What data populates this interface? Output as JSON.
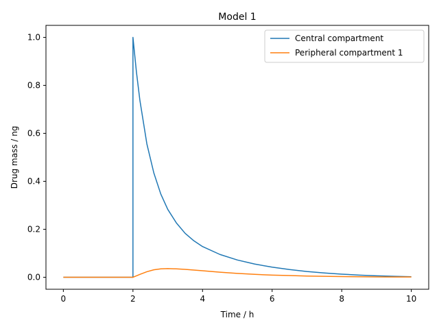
{
  "chart_data": {
    "type": "line",
    "title": "Model 1",
    "xlabel": "Time / h",
    "ylabel": "Drug mass / ng",
    "xlim": [
      -0.5,
      10.5
    ],
    "ylim": [
      -0.05,
      1.05
    ],
    "x_ticks": [
      0,
      2,
      4,
      6,
      8,
      10
    ],
    "x_tick_labels": [
      "0",
      "2",
      "4",
      "6",
      "8",
      "10"
    ],
    "y_ticks": [
      0.0,
      0.2,
      0.4,
      0.6,
      0.8,
      1.0
    ],
    "y_tick_labels": [
      "0.0",
      "0.2",
      "0.4",
      "0.6",
      "0.8",
      "1.0"
    ],
    "grid": false,
    "legend_position": "top-right",
    "series": [
      {
        "name": "Central compartment",
        "color": "#1f77b4",
        "x": [
          0,
          1,
          2,
          2,
          2.1,
          2.2,
          2.4,
          2.6,
          2.8,
          3.0,
          3.25,
          3.5,
          3.75,
          4.0,
          4.5,
          5.0,
          5.5,
          6.0,
          6.5,
          7.0,
          7.5,
          8.0,
          8.5,
          9.0,
          9.5,
          10.0
        ],
        "y": [
          0,
          0,
          0,
          1.0,
          0.856,
          0.737,
          0.556,
          0.435,
          0.347,
          0.283,
          0.226,
          0.183,
          0.152,
          0.128,
          0.095,
          0.072,
          0.055,
          0.042,
          0.032,
          0.024,
          0.018,
          0.013,
          0.009,
          0.006,
          0.004,
          0.002
        ]
      },
      {
        "name": "Peripheral compartment 1",
        "color": "#ff7f0e",
        "x": [
          0,
          1,
          2,
          2.1,
          2.2,
          2.4,
          2.6,
          2.8,
          3.0,
          3.25,
          3.5,
          3.75,
          4.0,
          4.5,
          5.0,
          5.5,
          6.0,
          6.5,
          7.0,
          7.5,
          8.0,
          8.5,
          9.0,
          9.5,
          10.0
        ],
        "y": [
          0,
          0,
          0,
          0.006,
          0.012,
          0.023,
          0.031,
          0.035,
          0.036,
          0.035,
          0.033,
          0.03,
          0.027,
          0.021,
          0.016,
          0.012,
          0.009,
          0.007,
          0.005,
          0.004,
          0.003,
          0.002,
          0.0015,
          0.001,
          0.001
        ]
      }
    ]
  }
}
